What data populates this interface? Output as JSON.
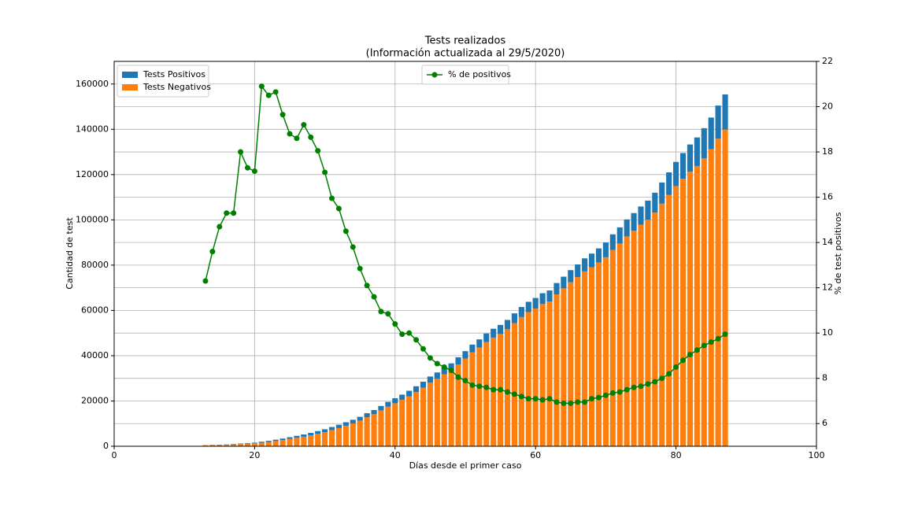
{
  "chart_data": {
    "type": "bar",
    "stacked": true,
    "title": "Tests realizados",
    "subtitle": "(Información actualizada al 29/5/2020)",
    "x_label": "Días desde el primer caso",
    "y_label": "Cantidad de test",
    "y2_label": "% de test positivos",
    "x": [
      13,
      14,
      15,
      16,
      17,
      18,
      19,
      20,
      21,
      22,
      23,
      24,
      25,
      26,
      27,
      28,
      29,
      30,
      31,
      32,
      33,
      34,
      35,
      36,
      37,
      38,
      39,
      40,
      41,
      42,
      43,
      44,
      45,
      46,
      47,
      48,
      49,
      50,
      51,
      52,
      53,
      54,
      55,
      56,
      57,
      58,
      59,
      60,
      61,
      62,
      63,
      64,
      65,
      66,
      67,
      68,
      69,
      70,
      71,
      72,
      73,
      74,
      75,
      76,
      77,
      78,
      79,
      80,
      81,
      82,
      83,
      84,
      85,
      86,
      87
    ],
    "series": [
      {
        "name": "Tests Positivos",
        "color": "#1f77b4",
        "values": [
          62,
          82,
          103,
          122,
          153,
          216,
          242,
          274,
          418,
          492,
          599,
          668,
          752,
          856,
          998,
          1100,
          1209,
          1283,
          1356,
          1473,
          1537,
          1615,
          1671,
          1767,
          1856,
          1949,
          2127,
          2205,
          2269,
          2450,
          2571,
          2651,
          2741,
          2820,
          2950,
          3056,
          3164,
          3318,
          3457,
          3611,
          3785,
          3893,
          4020,
          4129,
          4285,
          4428,
          4530,
          4651,
          4766,
          4885,
          5011,
          5168,
          5368,
          5581,
          5769,
          6042,
          6249,
          6525,
          6880,
          7156,
          7515,
          7828,
          8101,
          8409,
          8792,
          9320,
          9922,
          10676,
          11396,
          12064,
          12617,
          13277,
          13939,
          14674,
          15462
        ]
      },
      {
        "name": "Tests Negativos",
        "color": "#ff7f0e",
        "values": [
          438,
          518,
          597,
          678,
          847,
          984,
          1158,
          1326,
          1582,
          1908,
          2301,
          2732,
          3248,
          3744,
          4202,
          4800,
          5491,
          6217,
          7144,
          8027,
          9063,
          10085,
          11329,
          12833,
          14144,
          15851,
          17473,
          18995,
          20531,
          22050,
          23929,
          25849,
          28059,
          29780,
          31750,
          33544,
          36136,
          38682,
          41443,
          43589,
          46015,
          48007,
          49580,
          51671,
          54415,
          57072,
          59270,
          60849,
          62834,
          63915,
          67089,
          69732,
          72432,
          74719,
          77231,
          79058,
          81151,
          83475,
          86720,
          89544,
          92685,
          95172,
          97799,
          100091,
          103208,
          107180,
          111078,
          114924,
          118104,
          121236,
          123783,
          127223,
          131261,
          135826,
          139938
        ]
      },
      {
        "name": "% de positivos",
        "type": "line",
        "axis": "y2",
        "color": "#008000",
        "values": [
          12.3,
          13.6,
          14.7,
          15.3,
          15.3,
          18.0,
          17.3,
          17.15,
          20.9,
          20.5,
          20.65,
          19.65,
          18.8,
          18.6,
          19.2,
          18.65,
          18.05,
          17.1,
          15.95,
          15.5,
          14.5,
          13.8,
          12.85,
          12.1,
          11.6,
          10.95,
          10.85,
          10.4,
          9.95,
          10.0,
          9.7,
          9.3,
          8.9,
          8.65,
          8.5,
          8.35,
          8.05,
          7.9,
          7.7,
          7.65,
          7.6,
          7.5,
          7.5,
          7.4,
          7.3,
          7.2,
          7.1,
          7.1,
          7.05,
          7.1,
          6.95,
          6.9,
          6.9,
          6.95,
          6.95,
          7.1,
          7.15,
          7.25,
          7.35,
          7.4,
          7.5,
          7.6,
          7.65,
          7.75,
          7.85,
          8.0,
          8.2,
          8.5,
          8.8,
          9.05,
          9.25,
          9.45,
          9.6,
          9.75,
          9.95
        ]
      }
    ],
    "xlim": [
      0,
      100
    ],
    "xticks": [
      0,
      20,
      40,
      60,
      80,
      100
    ],
    "ylim": [
      0,
      170000
    ],
    "yticks": [
      0,
      20000,
      40000,
      60000,
      80000,
      100000,
      120000,
      140000,
      160000
    ],
    "y2lim": [
      5,
      22
    ],
    "y2ticks": [
      6,
      8,
      10,
      12,
      14,
      16,
      18,
      20,
      22
    ],
    "grid": true,
    "legend_loc": "upper left",
    "legend2_loc": "upper center"
  }
}
